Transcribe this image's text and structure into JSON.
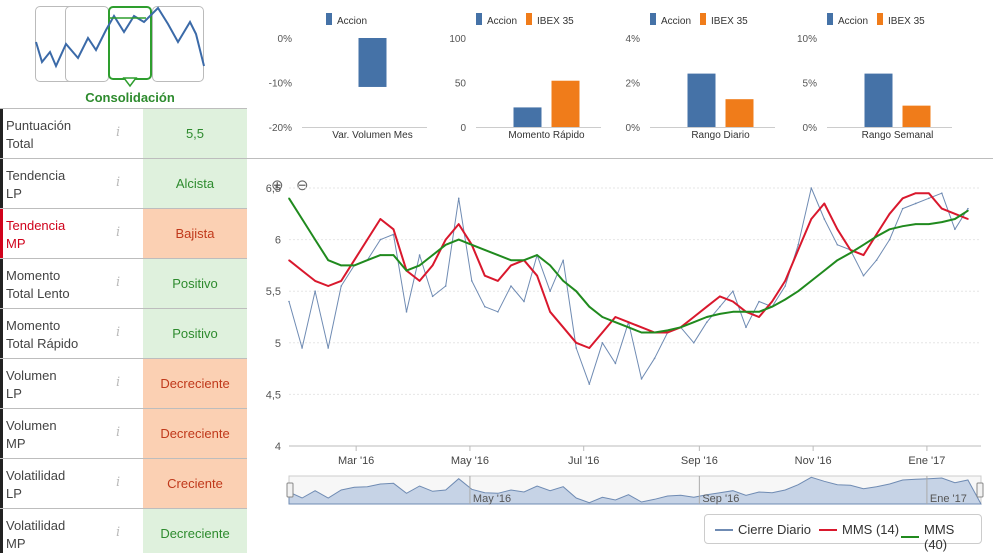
{
  "phase": {
    "label": "Consolidación"
  },
  "indicators": [
    {
      "name": [
        "Puntuación",
        "Total"
      ],
      "value": "5,5",
      "status": "green",
      "name_color": "default",
      "info_icon": "info-icon"
    },
    {
      "name": [
        "Tendencia",
        "LP"
      ],
      "value": "Alcista",
      "status": "green",
      "name_color": "default",
      "info_icon": "info-icon"
    },
    {
      "name": [
        "Tendencia",
        "MP"
      ],
      "value": "Bajista",
      "status": "orange",
      "name_color": "red",
      "info_icon": "info-icon"
    },
    {
      "name": [
        "Momento",
        "Total Lento"
      ],
      "value": "Positivo",
      "status": "green",
      "name_color": "default",
      "info_icon": "info-icon"
    },
    {
      "name": [
        "Momento",
        "Total Rápido"
      ],
      "value": "Positivo",
      "status": "green",
      "name_color": "default",
      "info_icon": "info-icon"
    },
    {
      "name": [
        "Volumen",
        "LP"
      ],
      "value": "Decreciente",
      "status": "orange",
      "name_color": "default",
      "info_icon": "info-icon"
    },
    {
      "name": [
        "Volumen",
        "MP"
      ],
      "value": "Decreciente",
      "status": "orange",
      "name_color": "default",
      "info_icon": "info-icon"
    },
    {
      "name": [
        "Volatilidad",
        "LP"
      ],
      "value": "Creciente",
      "status": "orange",
      "name_color": "default",
      "info_icon": "info-icon"
    },
    {
      "name": [
        "Volatilidad",
        "MP"
      ],
      "value": "Decreciente",
      "status": "green",
      "name_color": "default",
      "info_icon": "info-icon"
    }
  ],
  "colors": {
    "accion": "#4572a7",
    "ibex": "#f07c1a",
    "cierre": "#6f8bb3",
    "mms14": "#d9182d",
    "mms40": "#208a1e",
    "green_bg": "#dff1dd",
    "orange_bg": "#fbd0b3"
  },
  "chart_data": [
    {
      "type": "bar",
      "title": "",
      "xlabel": "Var. Volumen Mes",
      "legend": [
        "Accion"
      ],
      "series": [
        {
          "name": "Accion",
          "values": [
            -11
          ]
        }
      ],
      "yticks": [
        "0%",
        "-10%",
        "-20%"
      ],
      "ylim": [
        -20,
        0
      ]
    },
    {
      "type": "bar",
      "title": "",
      "xlabel": "Momento Rápido",
      "legend": [
        "Accion",
        "IBEX 35"
      ],
      "series": [
        {
          "name": "Accion",
          "values": [
            22
          ]
        },
        {
          "name": "IBEX 35",
          "values": [
            52
          ]
        }
      ],
      "yticks": [
        "100",
        "50",
        "0"
      ],
      "ylim": [
        0,
        100
      ]
    },
    {
      "type": "bar",
      "title": "",
      "xlabel": "Rango Diario",
      "legend": [
        "Accion",
        "IBEX 35"
      ],
      "series": [
        {
          "name": "Accion",
          "values": [
            2.4
          ]
        },
        {
          "name": "IBEX 35",
          "values": [
            1.25
          ]
        }
      ],
      "yticks": [
        "4%",
        "2%",
        "0%"
      ],
      "ylim": [
        0,
        4
      ]
    },
    {
      "type": "bar",
      "title": "",
      "xlabel": "Rango Semanal",
      "legend": [
        "Accion",
        "IBEX 35"
      ],
      "series": [
        {
          "name": "Accion",
          "values": [
            6
          ]
        },
        {
          "name": "IBEX 35",
          "values": [
            2.4
          ]
        }
      ],
      "yticks": [
        "10%",
        "5%",
        "0%"
      ],
      "ylim": [
        0,
        10
      ]
    },
    {
      "type": "line",
      "title": "",
      "ylim": [
        4,
        6.5
      ],
      "yticks": [
        "6,5",
        "6",
        "5,5",
        "5",
        "4,5",
        "4"
      ],
      "xticks": [
        "Mar '16",
        "May '16",
        "Jul '16",
        "Sep '16",
        "Nov '16",
        "Ene '17"
      ],
      "navigator_labels": [
        "May '16",
        "Sep '16",
        "Ene '17"
      ],
      "legend_position": "bottom-right",
      "x": [
        "2016-01-25",
        "2016-02-01",
        "2016-02-08",
        "2016-02-15",
        "2016-02-22",
        "2016-02-29",
        "2016-03-07",
        "2016-03-14",
        "2016-03-21",
        "2016-03-28",
        "2016-04-04",
        "2016-04-11",
        "2016-04-18",
        "2016-04-25",
        "2016-05-02",
        "2016-05-09",
        "2016-05-16",
        "2016-05-23",
        "2016-05-30",
        "2016-06-06",
        "2016-06-13",
        "2016-06-20",
        "2016-06-27",
        "2016-07-04",
        "2016-07-11",
        "2016-07-18",
        "2016-07-25",
        "2016-08-01",
        "2016-08-08",
        "2016-08-15",
        "2016-08-22",
        "2016-08-29",
        "2016-09-05",
        "2016-09-12",
        "2016-09-19",
        "2016-09-26",
        "2016-10-03",
        "2016-10-10",
        "2016-10-17",
        "2016-10-24",
        "2016-10-31",
        "2016-11-07",
        "2016-11-14",
        "2016-11-21",
        "2016-11-28",
        "2016-12-05",
        "2016-12-12",
        "2016-12-19",
        "2016-12-26",
        "2017-01-02",
        "2017-01-09",
        "2017-01-16",
        "2017-01-23"
      ],
      "series": [
        {
          "name": "Cierre Diario",
          "values": [
            5.4,
            4.95,
            5.5,
            4.95,
            5.55,
            5.75,
            5.8,
            6.0,
            6.05,
            5.3,
            5.85,
            5.45,
            5.55,
            6.4,
            5.6,
            5.35,
            5.3,
            5.55,
            5.4,
            5.85,
            5.5,
            5.8,
            4.95,
            4.6,
            5.0,
            4.8,
            5.2,
            4.65,
            4.85,
            5.1,
            5.15,
            5.0,
            5.2,
            5.35,
            5.5,
            5.15,
            5.4,
            5.35,
            5.55,
            5.95,
            6.5,
            6.2,
            5.95,
            5.9,
            5.65,
            5.8,
            6.0,
            6.3,
            6.35,
            6.4,
            6.45,
            6.1,
            6.3
          ]
        },
        {
          "name": "MMS (14)",
          "values": [
            5.8,
            5.7,
            5.6,
            5.55,
            5.6,
            5.8,
            6.0,
            6.2,
            6.1,
            5.7,
            5.6,
            5.75,
            6.0,
            6.15,
            5.95,
            5.65,
            5.6,
            5.75,
            5.8,
            5.65,
            5.3,
            5.15,
            5.0,
            4.95,
            5.1,
            5.25,
            5.2,
            5.15,
            5.1,
            5.1,
            5.15,
            5.25,
            5.35,
            5.45,
            5.4,
            5.3,
            5.25,
            5.4,
            5.6,
            5.9,
            6.2,
            6.35,
            6.1,
            5.9,
            5.85,
            6.05,
            6.25,
            6.4,
            6.45,
            6.45,
            6.3,
            6.25,
            6.2
          ]
        },
        {
          "name": "MMS (40)",
          "values": [
            6.4,
            6.2,
            6.0,
            5.8,
            5.75,
            5.75,
            5.8,
            5.85,
            5.85,
            5.7,
            5.75,
            5.85,
            5.95,
            6.0,
            5.95,
            5.9,
            5.85,
            5.8,
            5.8,
            5.85,
            5.75,
            5.6,
            5.5,
            5.35,
            5.25,
            5.2,
            5.15,
            5.1,
            5.1,
            5.12,
            5.15,
            5.2,
            5.25,
            5.28,
            5.3,
            5.3,
            5.3,
            5.35,
            5.42,
            5.5,
            5.6,
            5.7,
            5.8,
            5.87,
            5.95,
            6.03,
            6.1,
            6.13,
            6.15,
            6.15,
            6.17,
            6.2,
            6.28
          ]
        }
      ]
    }
  ]
}
